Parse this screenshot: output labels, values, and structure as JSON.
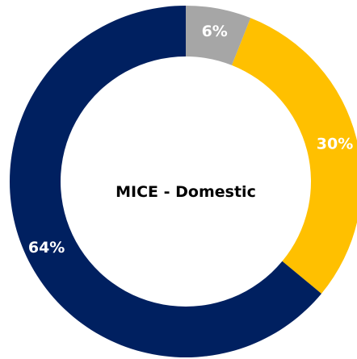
{
  "chart_data": {
    "type": "pie",
    "subtype": "donut",
    "center_label": "MICE - Domestic",
    "slices": [
      {
        "value": 6,
        "label": "6%",
        "color": "#a6a6a6"
      },
      {
        "value": 30,
        "label": "30%",
        "color": "#ffc000"
      },
      {
        "value": 64,
        "label": "64%",
        "color": "#002060"
      }
    ],
    "start": "top",
    "direction": "clockwise",
    "legend": "none"
  }
}
